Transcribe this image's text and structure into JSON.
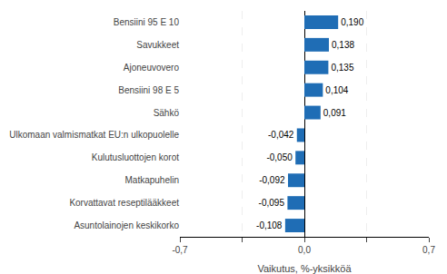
{
  "chart_data": {
    "type": "bar",
    "orientation": "horizontal",
    "categories": [
      "Asuntolainojen keskikorko",
      "Korvattavat reseptilääkkeet",
      "Matkapuhelin",
      "Kulutusluottojen korot",
      "Ulkomaan valmismatkat EU:n ulkopuolelle",
      "Sähkö",
      "Bensiini 98 E 5",
      "Ajoneuvovero",
      "Savukkeet",
      "Bensiini 95 E 10"
    ],
    "values": [
      -0.108,
      -0.095,
      -0.092,
      -0.05,
      -0.042,
      0.091,
      0.104,
      0.135,
      0.138,
      0.19
    ],
    "value_labels": [
      "-0,108",
      "-0,095",
      "-0,092",
      "-0,050",
      "-0,042",
      "0,091",
      "0,104",
      "0,135",
      "0,138",
      "0,190"
    ],
    "data_labels": true,
    "color": "#1f6db5",
    "xlabel": "Vaikutus, %-yksikköä",
    "xlim": [
      -0.7,
      0.7
    ],
    "xticks": [
      {
        "value": -0.7,
        "label": "-0,7"
      },
      {
        "value": -0.35,
        "label": null
      },
      {
        "value": 0.0,
        "label": "0,0"
      },
      {
        "value": 0.35,
        "label": null
      },
      {
        "value": 0.7,
        "label": "0,7"
      }
    ],
    "grid": true
  }
}
